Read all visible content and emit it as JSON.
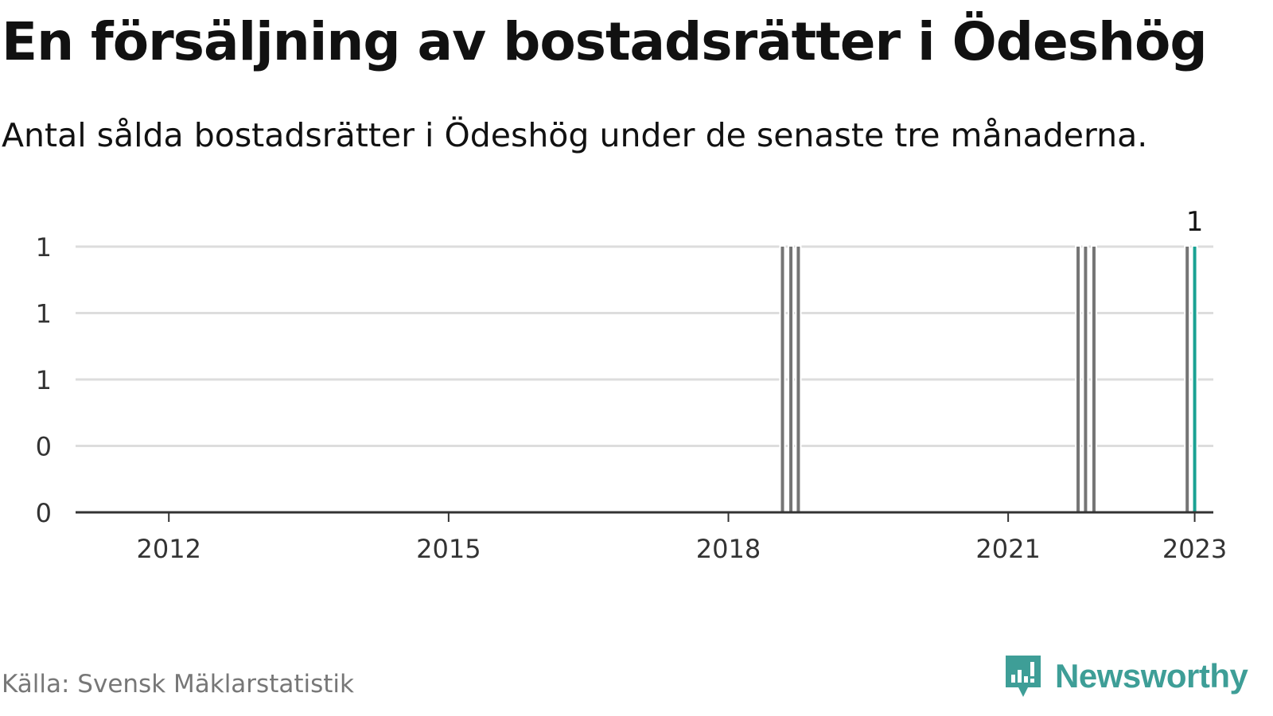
{
  "header": {
    "title": "En försäljning av bostadsrätter i Ödeshög",
    "subtitle": "Antal sålda bostadsrätter i Ödeshög under de senaste tre månaderna."
  },
  "footer": {
    "source": "Källa: Svensk Mäklarstatistik",
    "brand": "Newsworthy"
  },
  "colors": {
    "bar": "#757575",
    "highlight": "#1aa293",
    "grid": "#dddddd",
    "axis": "#333333",
    "brand": "#3e9e97"
  },
  "chart_data": {
    "type": "bar",
    "title": "En försäljning av bostadsrätter i Ödeshög",
    "subtitle": "Antal sålda bostadsrätter i Ödeshög under de senaste tre månaderna.",
    "xlabel": "",
    "ylabel": "",
    "xlim": [
      2011.0,
      2023.2
    ],
    "ylim": [
      0,
      1
    ],
    "y_ticks": [
      0,
      0.25,
      0.5,
      0.75,
      1
    ],
    "y_tick_labels": [
      "0",
      "0",
      "1",
      "1",
      "1"
    ],
    "x_ticks": [
      2012,
      2015,
      2018,
      2021,
      2023
    ],
    "x_tick_labels": [
      "2012",
      "2015",
      "2018",
      "2021",
      "2023"
    ],
    "grid": true,
    "series": [
      {
        "points": [
          {
            "x": 2018.58,
            "y": 1
          },
          {
            "x": 2018.67,
            "y": 1
          },
          {
            "x": 2018.75,
            "y": 1
          },
          {
            "x": 2021.75,
            "y": 1
          },
          {
            "x": 2021.83,
            "y": 1
          },
          {
            "x": 2021.92,
            "y": 1
          },
          {
            "x": 2022.92,
            "y": 1
          },
          {
            "x": 2023.0,
            "y": 1,
            "highlight": true
          }
        ]
      }
    ],
    "annotations": [
      {
        "x": 2023.0,
        "y": 1,
        "text": "1"
      }
    ]
  }
}
